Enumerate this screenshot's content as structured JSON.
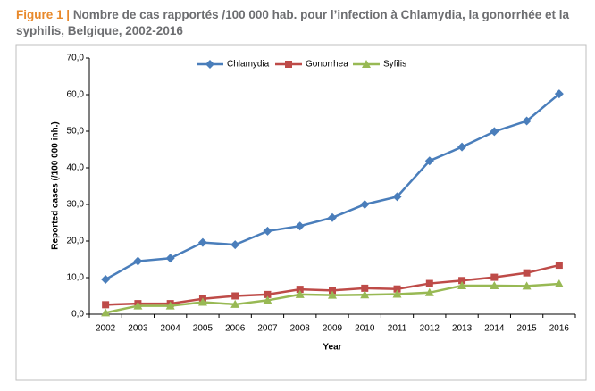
{
  "figure_label": "Figure 1 |",
  "chart_data": {
    "type": "line",
    "title": "Nombre de cas rapportés /100 000 hab. pour l’infection à Chlamydia, la gonorrhée et la syphilis, Belgique, 2002-2016",
    "x_label": "Year",
    "y_label": "Reported cases (/100 000 inh.)",
    "categories": [
      "2002",
      "2003",
      "2004",
      "2005",
      "2006",
      "2007",
      "2008",
      "2009",
      "2010",
      "2011",
      "2012",
      "2013",
      "2014",
      "2015",
      "2016"
    ],
    "series": [
      {
        "name": "Chlamydia",
        "color": "#4a7ebb",
        "marker": "diamond",
        "values": [
          9.5,
          14.5,
          15.3,
          19.6,
          19.0,
          22.7,
          24.1,
          26.4,
          30.0,
          32.1,
          41.9,
          45.7,
          49.9,
          52.8,
          60.2
        ]
      },
      {
        "name": "Gonorrhea",
        "color": "#be4b48",
        "marker": "square",
        "values": [
          2.6,
          2.9,
          2.9,
          4.2,
          5.0,
          5.4,
          6.8,
          6.5,
          7.1,
          6.9,
          8.4,
          9.2,
          10.1,
          11.3,
          13.4
        ]
      },
      {
        "name": "Syfilis",
        "color": "#98b954",
        "marker": "triangle",
        "values": [
          0.4,
          2.3,
          2.3,
          3.3,
          2.7,
          3.8,
          5.4,
          5.2,
          5.3,
          5.5,
          5.9,
          7.8,
          7.8,
          7.7,
          8.3
        ]
      }
    ],
    "ylim": [
      0,
      70
    ],
    "yticks": [
      {
        "value": 0,
        "label": "0,0"
      },
      {
        "value": 10,
        "label": "10,0"
      },
      {
        "value": 20,
        "label": "20,0"
      },
      {
        "value": 30,
        "label": "30,0"
      },
      {
        "value": 40,
        "label": "40,0"
      },
      {
        "value": 50,
        "label": "50,0"
      },
      {
        "value": 60,
        "label": "60,0"
      },
      {
        "value": 70,
        "label": "70,0"
      }
    ],
    "grid": false,
    "legend": "top"
  }
}
